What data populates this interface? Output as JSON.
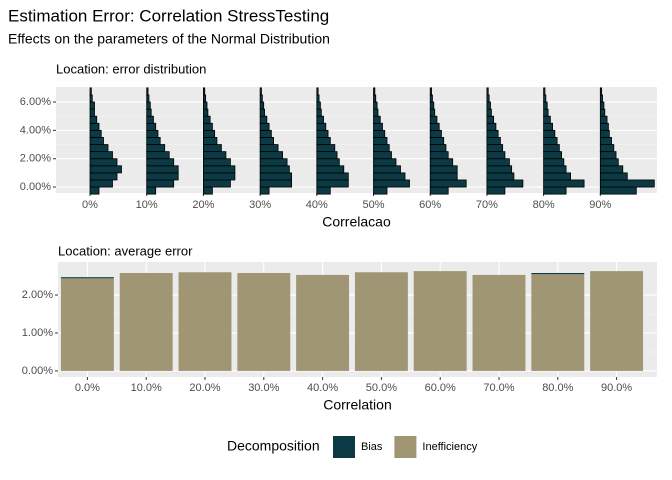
{
  "title": "Estimation Error: Correlation StressTesting",
  "subtitle": "Effects on the parameters of the Normal Distribution",
  "chart_data": [
    {
      "type": "histogram",
      "title": "Location: error distribution",
      "xlabel": "Correlacao",
      "categories": [
        "0%",
        "10%",
        "20%",
        "30%",
        "40%",
        "50%",
        "60%",
        "70%",
        "80%",
        "90%"
      ],
      "bins": [
        -0.5,
        0,
        0.5,
        1,
        1.5,
        2,
        2.5,
        3,
        3.5,
        4,
        4.5,
        5,
        5.5,
        6,
        6.5,
        7
      ],
      "counts": [
        [
          2,
          5,
          6,
          7,
          6,
          5,
          4,
          3,
          2.5,
          2,
          1.5,
          1,
          1,
          0.5,
          0.3
        ],
        [
          2,
          6,
          7,
          7,
          6,
          5,
          4,
          3,
          2.5,
          2,
          1.5,
          1,
          0.8,
          0.5,
          0.3
        ],
        [
          2,
          6,
          7,
          7,
          6,
          5,
          4,
          3,
          2.5,
          2,
          1.5,
          1,
          0.8,
          0.5,
          0.3
        ],
        [
          2,
          7,
          7,
          6.5,
          6,
          5,
          4,
          3,
          2.5,
          2,
          1.5,
          1,
          0.8,
          0.5,
          0.3
        ],
        [
          3,
          7,
          7,
          6,
          5,
          4.5,
          4,
          3,
          2.5,
          2,
          1.5,
          1,
          0.8,
          0.5,
          0.3
        ],
        [
          3,
          8,
          7,
          6,
          5,
          4,
          3.5,
          3,
          2.5,
          2,
          1.5,
          1,
          0.8,
          0.5,
          0.3
        ],
        [
          4,
          8,
          6,
          6,
          5,
          4,
          3.5,
          3,
          2.5,
          2,
          1.5,
          1,
          0.8,
          0.5,
          0.3
        ],
        [
          4,
          8,
          6,
          5.5,
          5,
          4,
          3.5,
          3,
          2.5,
          2,
          1.5,
          1,
          0.8,
          0.5,
          0.3
        ],
        [
          5,
          9,
          6,
          5,
          4.5,
          4,
          3.5,
          3,
          2.5,
          2,
          1.5,
          1,
          0.8,
          0.5,
          0.3
        ],
        [
          8,
          12,
          6,
          5,
          4,
          3.5,
          3,
          2.5,
          2,
          1.8,
          1.5,
          1,
          0.8,
          0.5,
          0.3
        ]
      ],
      "color": "#0b3a44",
      "ylim": [
        -0.42,
        7.06
      ],
      "yticks": [
        {
          "value": 0,
          "label": "0.00%"
        },
        {
          "value": 2,
          "label": "2.00%"
        },
        {
          "value": 4,
          "label": "4.00%"
        },
        {
          "value": 6,
          "label": "6.00%"
        }
      ],
      "grid": true
    },
    {
      "type": "stacked_bar",
      "title": "Location: average error",
      "xlabel": "Correlation",
      "categories": [
        "0.0%",
        "10.0%",
        "20.0%",
        "30.0%",
        "40.0%",
        "50.0%",
        "60.0%",
        "70.0%",
        "80.0%",
        "90.0%"
      ],
      "series": [
        {
          "name": "Inefficiency",
          "color": "#a09674",
          "values": [
            2.44,
            2.58,
            2.6,
            2.58,
            2.53,
            2.6,
            2.63,
            2.53,
            2.55,
            2.63
          ]
        },
        {
          "name": "Bias",
          "color": "#0b3a44",
          "values": [
            0.03,
            0,
            0,
            0,
            0,
            0,
            0,
            0,
            0.03,
            0
          ]
        }
      ],
      "ylim": [
        -0.16,
        2.87
      ],
      "yticks": [
        {
          "value": 0,
          "label": "0.00%"
        },
        {
          "value": 1,
          "label": "1.00%"
        },
        {
          "value": 2,
          "label": "2.00%"
        }
      ],
      "grid": true,
      "legend_title": "Decomposition",
      "legend_position": "bottom"
    }
  ]
}
